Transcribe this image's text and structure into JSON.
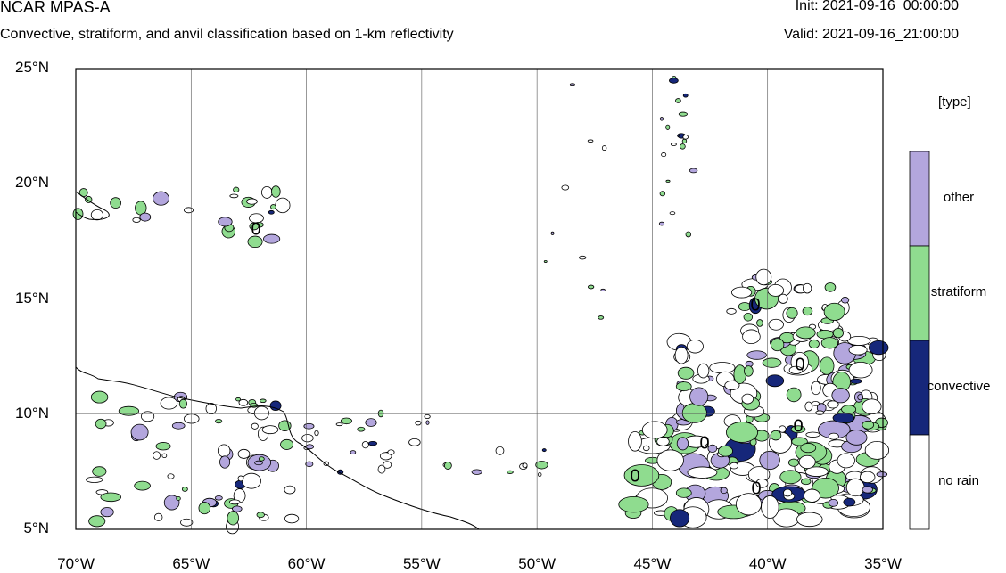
{
  "header": {
    "title": "NCAR MPAS-A",
    "subtitle": "Convective, stratiform, and anvil classification based on 1-km reflectivity",
    "init": "Init: 2021-09-16_00:00:00",
    "valid": "Valid: 2021-09-16_21:00:00"
  },
  "map": {
    "lat_ticks": [
      "25°N",
      "20°N",
      "15°N",
      "10°N",
      "5°N"
    ],
    "lon_ticks": [
      "70°W",
      "65°W",
      "60°W",
      "55°W",
      "50°W",
      "45°W",
      "40°W",
      "35°W"
    ],
    "lon_range": [
      -70,
      -35
    ],
    "lat_range": [
      5,
      25
    ],
    "contour_label": "0"
  },
  "legend": {
    "title": "[type]",
    "items": [
      {
        "label": "other",
        "color": "#b3a6dd"
      },
      {
        "label": "stratiform",
        "color": "#8fdc8f"
      },
      {
        "label": "convective",
        "color": "#16277a"
      },
      {
        "label": "no rain",
        "color": "#ffffff"
      }
    ]
  }
}
